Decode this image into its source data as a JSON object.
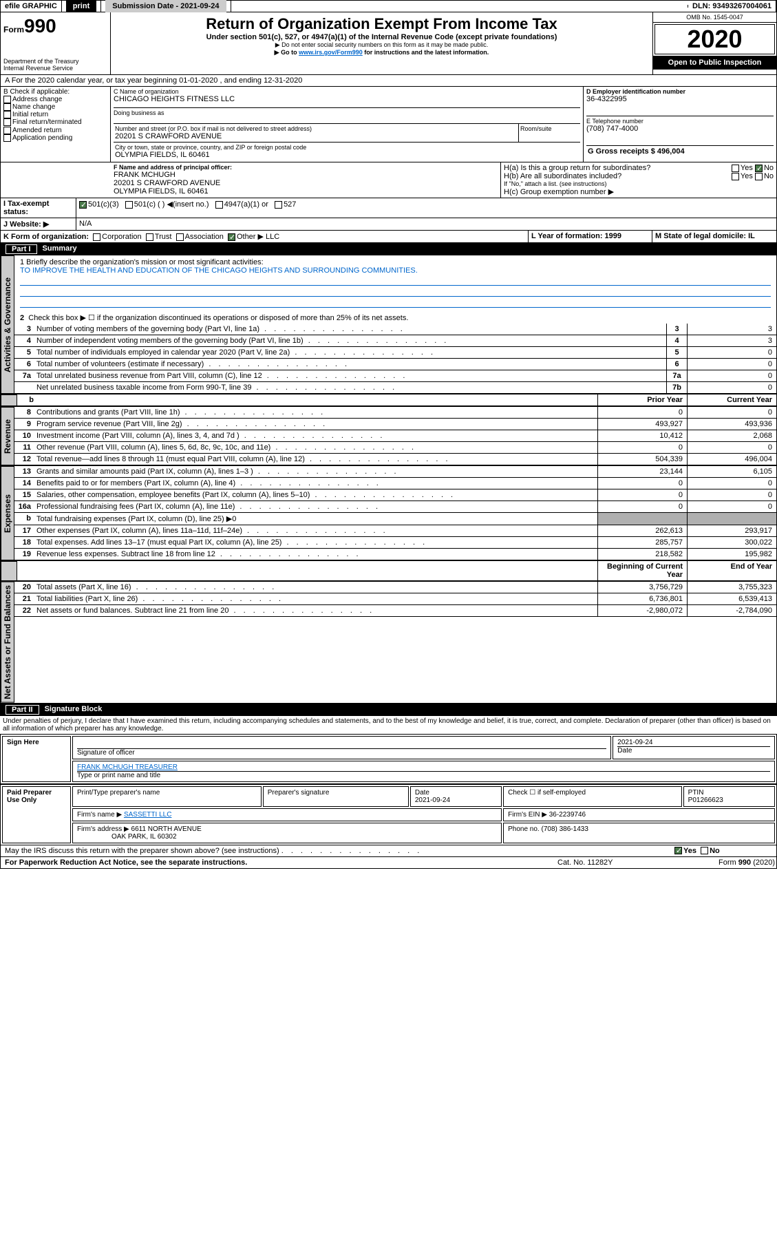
{
  "topbar": {
    "efile": "efile GRAPHIC",
    "print": "print",
    "subdate_label": "Submission Date - 2021-09-24",
    "dln": "DLN: 93493267004061"
  },
  "header": {
    "form_small": "Form",
    "form_num": "990",
    "dept": "Department of the Treasury",
    "irs": "Internal Revenue Service",
    "title": "Return of Organization Exempt From Income Tax",
    "subtitle": "Under section 501(c), 527, or 4947(a)(1) of the Internal Revenue Code (except private foundations)",
    "note1": "▶ Do not enter social security numbers on this form as it may be made public.",
    "note2_pre": "▶ Go to ",
    "note2_link": "www.irs.gov/Form990",
    "note2_post": " for instructions and the latest information.",
    "omb": "OMB No. 1545-0047",
    "year": "2020",
    "open": "Open to Public Inspection"
  },
  "period": {
    "a": "A For the 2020 calendar year, or tax year beginning 01-01-2020    , and ending 12-31-2020"
  },
  "boxB": {
    "label": "B Check if applicable:",
    "items": [
      "Address change",
      "Name change",
      "Initial return",
      "Final return/terminated",
      "Amended return",
      "Application pending"
    ]
  },
  "boxC": {
    "name_label": "C Name of organization",
    "name": "CHICAGO HEIGHTS FITNESS LLC",
    "dba_label": "Doing business as",
    "addr_label": "Number and street (or P.O. box if mail is not delivered to street address)",
    "room_label": "Room/suite",
    "addr": "20201 S CRAWFORD AVENUE",
    "city_label": "City or town, state or province, country, and ZIP or foreign postal code",
    "city": "OLYMPIA FIELDS, IL  60461"
  },
  "boxD": {
    "label": "D Employer identification number",
    "val": "36-4322995"
  },
  "boxE": {
    "label": "E Telephone number",
    "val": "(708) 747-4000"
  },
  "boxG": {
    "label": "G Gross receipts $ 496,004"
  },
  "boxF": {
    "label": "F Name and address of principal officer:",
    "name": "FRANK MCHUGH",
    "addr1": "20201 S CRAWFORD AVENUE",
    "addr2": "OLYMPIA FIELDS, IL  60461"
  },
  "boxH": {
    "a": "H(a)  Is this a group return for subordinates?",
    "b": "H(b)  Are all subordinates included?",
    "bnote": "If \"No,\" attach a list. (see instructions)",
    "c": "H(c)  Group exemption number ▶",
    "yes": "Yes",
    "no": "No"
  },
  "boxI": {
    "label": "I Tax-exempt status:",
    "opts": [
      "501(c)(3)",
      "501(c) (  ) ◀(insert no.)",
      "4947(a)(1) or",
      "527"
    ]
  },
  "boxJ": {
    "label": "J Website: ▶",
    "val": "N/A"
  },
  "boxK": {
    "label": "K Form of organization:",
    "opts": [
      "Corporation",
      "Trust",
      "Association",
      "Other ▶"
    ],
    "other": "LLC"
  },
  "boxL": {
    "label": "L Year of formation: 1999"
  },
  "boxM": {
    "label": "M State of legal domicile: IL"
  },
  "part1": {
    "header_num": "Part I",
    "header_txt": "Summary",
    "q1": "1  Briefly describe the organization's mission or most significant activities:",
    "q1val": "TO IMPROVE THE HEALTH AND EDUCATION OF THE CHICAGO HEIGHTS AND SURROUNDING COMMUNITIES.",
    "q2": "Check this box ▶ ☐ if the organization discontinued its operations or disposed of more than 25% of its net assets.",
    "lines_gov": [
      {
        "n": "3",
        "d": "Number of voting members of the governing body (Part VI, line 1a)",
        "b": "3",
        "v": "3"
      },
      {
        "n": "4",
        "d": "Number of independent voting members of the governing body (Part VI, line 1b)",
        "b": "4",
        "v": "3"
      },
      {
        "n": "5",
        "d": "Total number of individuals employed in calendar year 2020 (Part V, line 2a)",
        "b": "5",
        "v": "0"
      },
      {
        "n": "6",
        "d": "Total number of volunteers (estimate if necessary)",
        "b": "6",
        "v": "0"
      },
      {
        "n": "7a",
        "d": "Total unrelated business revenue from Part VIII, column (C), line 12",
        "b": "7a",
        "v": "0"
      },
      {
        "n": "",
        "d": "Net unrelated business taxable income from Form 990-T, line 39",
        "b": "7b",
        "v": "0"
      }
    ],
    "col_prior": "Prior Year",
    "col_current": "Current Year",
    "lines_rev": [
      {
        "n": "8",
        "d": "Contributions and grants (Part VIII, line 1h)",
        "p": "0",
        "c": "0"
      },
      {
        "n": "9",
        "d": "Program service revenue (Part VIII, line 2g)",
        "p": "493,927",
        "c": "493,936"
      },
      {
        "n": "10",
        "d": "Investment income (Part VIII, column (A), lines 3, 4, and 7d )",
        "p": "10,412",
        "c": "2,068"
      },
      {
        "n": "11",
        "d": "Other revenue (Part VIII, column (A), lines 5, 6d, 8c, 9c, 10c, and 11e)",
        "p": "0",
        "c": "0"
      },
      {
        "n": "12",
        "d": "Total revenue—add lines 8 through 11 (must equal Part VIII, column (A), line 12)",
        "p": "504,339",
        "c": "496,004"
      }
    ],
    "lines_exp": [
      {
        "n": "13",
        "d": "Grants and similar amounts paid (Part IX, column (A), lines 1–3 )",
        "p": "23,144",
        "c": "6,105"
      },
      {
        "n": "14",
        "d": "Benefits paid to or for members (Part IX, column (A), line 4)",
        "p": "0",
        "c": "0"
      },
      {
        "n": "15",
        "d": "Salaries, other compensation, employee benefits (Part IX, column (A), lines 5–10)",
        "p": "0",
        "c": "0"
      },
      {
        "n": "16a",
        "d": "Professional fundraising fees (Part IX, column (A), line 11e)",
        "p": "0",
        "c": "0"
      },
      {
        "n": "b",
        "d": "Total fundraising expenses (Part IX, column (D), line 25) ▶0",
        "p": "",
        "c": "",
        "shade": true
      },
      {
        "n": "17",
        "d": "Other expenses (Part IX, column (A), lines 11a–11d, 11f–24e)",
        "p": "262,613",
        "c": "293,917"
      },
      {
        "n": "18",
        "d": "Total expenses. Add lines 13–17 (must equal Part IX, column (A), line 25)",
        "p": "285,757",
        "c": "300,022"
      },
      {
        "n": "19",
        "d": "Revenue less expenses. Subtract line 18 from line 12",
        "p": "218,582",
        "c": "195,982"
      }
    ],
    "col_begin": "Beginning of Current Year",
    "col_end": "End of Year",
    "lines_net": [
      {
        "n": "20",
        "d": "Total assets (Part X, line 16)",
        "p": "3,756,729",
        "c": "3,755,323"
      },
      {
        "n": "21",
        "d": "Total liabilities (Part X, line 26)",
        "p": "6,736,801",
        "c": "6,539,413"
      },
      {
        "n": "22",
        "d": "Net assets or fund balances. Subtract line 21 from line 20",
        "p": "-2,980,072",
        "c": "-2,784,090"
      }
    ]
  },
  "part2": {
    "header_num": "Part II",
    "header_txt": "Signature Block",
    "decl": "Under penalties of perjury, I declare that I have examined this return, including accompanying schedules and statements, and to the best of my knowledge and belief, it is true, correct, and complete. Declaration of preparer (other than officer) is based on all information of which preparer has any knowledge."
  },
  "sign": {
    "here": "Sign Here",
    "sig_officer": "Signature of officer",
    "date": "2021-09-24",
    "date_lbl": "Date",
    "name_title": "FRANK MCHUGH  TREASURER",
    "name_lbl": "Type or print name and title"
  },
  "paid": {
    "label": "Paid Preparer Use Only",
    "col1": "Print/Type preparer's name",
    "col2": "Preparer's signature",
    "col3": "Date",
    "col3v": "2021-09-24",
    "col4": "Check ☐ if self-employed",
    "col5": "PTIN",
    "col5v": "P01266623",
    "firm_name_lbl": "Firm's name    ▶",
    "firm_name": "SASSETTI LLC",
    "firm_ein_lbl": "Firm's EIN ▶",
    "firm_ein": "36-2239746",
    "firm_addr_lbl": "Firm's address ▶",
    "firm_addr": "6611 NORTH AVENUE",
    "firm_city": "OAK PARK, IL  60302",
    "phone_lbl": "Phone no.",
    "phone": "(708) 386-1433"
  },
  "footer": {
    "discuss": "May the IRS discuss this return with the preparer shown above? (see instructions)",
    "yes": "Yes",
    "no": "No",
    "paperwork": "For Paperwork Reduction Act Notice, see the separate instructions.",
    "cat": "Cat. No. 11282Y",
    "form": "Form 990 (2020)"
  },
  "vert": {
    "gov": "Activities & Governance",
    "rev": "Revenue",
    "exp": "Expenses",
    "net": "Net Assets or Fund Balances"
  }
}
